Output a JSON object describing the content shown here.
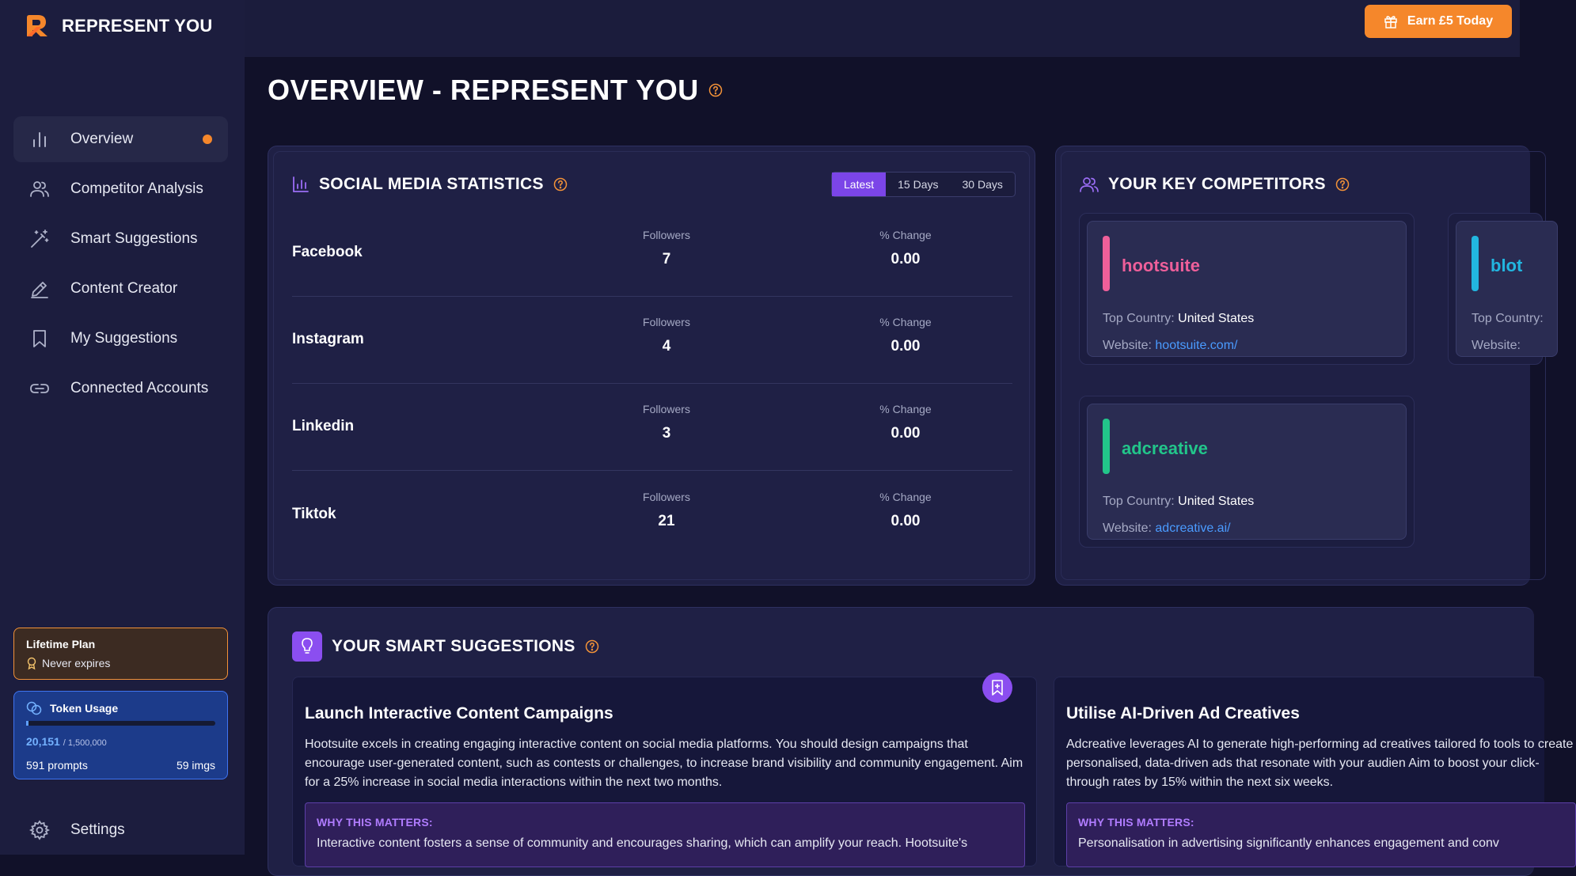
{
  "app": {
    "name": "REPRESENT YOU",
    "accent": "#f5872b"
  },
  "sidebar": {
    "items": [
      {
        "label": "Overview",
        "icon": "bar-chart-icon",
        "active": true
      },
      {
        "label": "Competitor Analysis",
        "icon": "users-icon"
      },
      {
        "label": "Smart Suggestions",
        "icon": "magic-wand-icon"
      },
      {
        "label": "Content Creator",
        "icon": "pen-icon"
      },
      {
        "label": "My Suggestions",
        "icon": "bookmark-icon"
      },
      {
        "label": "Connected Accounts",
        "icon": "link-icon"
      }
    ],
    "plan": {
      "title": "Lifetime Plan",
      "subtitle": "Never expires"
    },
    "tokens": {
      "title": "Token Usage",
      "used": "20,151",
      "total": "/ 1,500,000",
      "used_fraction": 0.0134,
      "prompts": "591 prompts",
      "images": "59 imgs"
    },
    "settings_label": "Settings"
  },
  "topbar": {
    "earn_label": "Earn £5 Today"
  },
  "page": {
    "title": "OVERVIEW - REPRESENT YOU"
  },
  "social": {
    "title": "SOCIAL MEDIA STATISTICS",
    "ranges": [
      "Latest",
      "15 Days",
      "30 Days"
    ],
    "active_range": "Latest",
    "followers_label": "Followers",
    "change_label": "% Change",
    "rows": [
      {
        "name": "Facebook",
        "followers": "7",
        "change": "0.00"
      },
      {
        "name": "Instagram",
        "followers": "4",
        "change": "0.00"
      },
      {
        "name": "Linkedin",
        "followers": "3",
        "change": "0.00"
      },
      {
        "name": "Tiktok",
        "followers": "21",
        "change": "0.00"
      }
    ]
  },
  "competitors": {
    "title": "YOUR KEY COMPETITORS",
    "country_label": "Top Country:",
    "website_label": "Website:",
    "items": [
      {
        "name": "hootsuite",
        "color": "#ee5f9a",
        "country": "United States",
        "website": "hootsuite.com/"
      },
      {
        "name": "blot",
        "color": "#22b6e0",
        "country": "",
        "website": ""
      },
      {
        "name": "adcreative",
        "color": "#22c58a",
        "country": "United States",
        "website": "adcreative.ai/"
      }
    ]
  },
  "suggestions": {
    "title": "YOUR SMART SUGGESTIONS",
    "why_label": "WHY THIS MATTERS:",
    "items": [
      {
        "title": "Launch Interactive Content Campaigns",
        "body": "Hootsuite excels in creating engaging interactive content on social media platforms. You should design campaigns that encourage user-generated content, such as contests or challenges, to increase brand visibility and community engagement. Aim for a 25% increase in social media interactions within the next two months.",
        "why": "Interactive content fosters a sense of community and encourages sharing, which can amplify your reach. Hootsuite's"
      },
      {
        "title": "Utilise AI-Driven Ad Creatives",
        "body": "Adcreative leverages AI to generate high-performing ad creatives tailored fo tools to create personalised, data-driven ads that resonate with your audien Aim to boost your click-through rates by 15% within the next six weeks.",
        "why": "Personalisation in advertising significantly enhances engagement and conv"
      }
    ]
  }
}
